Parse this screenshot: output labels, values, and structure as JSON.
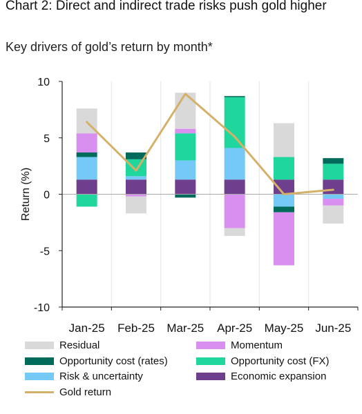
{
  "title": "Chart 2: Direct and indirect trade risks push gold higher",
  "subtitle": "Key drivers of gold’s return by month*",
  "colors": {
    "residual": "#d9d9d9",
    "momentum": "#d88ff0",
    "opp_rates": "#006a5b",
    "opp_fx": "#1fd69c",
    "risk": "#74c9f7",
    "economic": "#6d3f8c",
    "gold": "#d4b069"
  },
  "chart_data": {
    "type": "bar",
    "stacked": true,
    "ylabel": "Return (%)",
    "ylim": [
      -10,
      10
    ],
    "yticks": [
      "10",
      "5",
      "0",
      "-5",
      "-10"
    ],
    "categories": [
      "Jan-25",
      "Feb-25",
      "Mar-25",
      "Apr-25",
      "May-25",
      "Jun-25"
    ],
    "series": [
      {
        "key": "economic",
        "name": "Economic expansion",
        "values": [
          1.3,
          1.3,
          1.3,
          1.3,
          1.3,
          1.3
        ]
      },
      {
        "key": "risk",
        "name": "Risk & uncertainty",
        "values": [
          2.0,
          0.3,
          1.7,
          2.8,
          -1.1,
          -0.4
        ]
      },
      {
        "key": "opp_fx",
        "name": "Opportunity cost (FX)",
        "values": [
          -1.1,
          1.5,
          2.4,
          4.5,
          2.0,
          1.4
        ]
      },
      {
        "key": "opp_rates",
        "name": "Opportunity cost (rates)",
        "values": [
          0.4,
          0.6,
          -0.3,
          0.1,
          -0.5,
          0.5
        ]
      },
      {
        "key": "momentum",
        "name": "Momentum",
        "values": [
          1.7,
          -0.2,
          0.4,
          -3.0,
          -4.7,
          -0.6
        ]
      },
      {
        "key": "residual",
        "name": "Residual",
        "values": [
          2.2,
          -1.5,
          3.2,
          -0.7,
          3.0,
          -1.6
        ]
      }
    ],
    "line": {
      "key": "gold",
      "name": "Gold return",
      "values": [
        6.4,
        2.1,
        8.9,
        5.1,
        0.0,
        0.4
      ]
    }
  },
  "legend": [
    {
      "key": "residual",
      "label": "Residual",
      "kind": "box"
    },
    {
      "key": "momentum",
      "label": "Momentum",
      "kind": "box"
    },
    {
      "key": "opp_rates",
      "label": "Opportunity cost (rates)",
      "kind": "box"
    },
    {
      "key": "opp_fx",
      "label": "Opportunity cost (FX)",
      "kind": "box"
    },
    {
      "key": "risk",
      "label": "Risk & uncertainty",
      "kind": "box"
    },
    {
      "key": "economic",
      "label": "Economic expansion",
      "kind": "box"
    },
    {
      "key": "gold",
      "label": "Gold return",
      "kind": "line"
    }
  ]
}
